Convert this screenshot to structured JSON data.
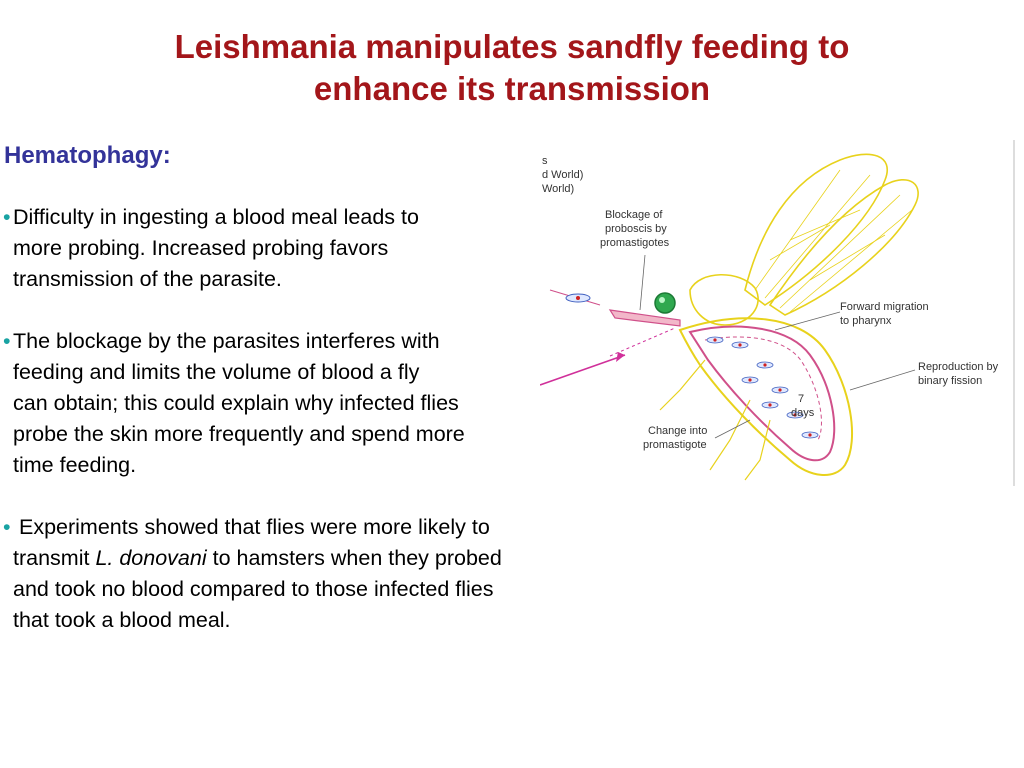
{
  "slide": {
    "title_line1": "Leishmania manipulates sandfly feeding to",
    "title_line2": "enhance its transmission",
    "section_heading": "Hematophagy:",
    "bullets": [
      {
        "lines": [
          "Difficulty in ingesting a blood meal leads to",
          "more probing. Increased probing favors",
          "transmission of the parasite."
        ]
      },
      {
        "lines": [
          "The blockage by the parasites interferes with",
          "feeding and limits the volume of blood a fly",
          "can obtain; this could explain why infected flies",
          "probe the skin more frequently and spend more",
          "time feeding."
        ]
      },
      {
        "line1": "Experiments showed that flies were more likely to",
        "line2_pre": "transmit ",
        "line2_italic": "L. donovani",
        "line2_post": " to hamsters when they probed",
        "line3": "and took no blood compared to those infected flies",
        "line4": "that took a blood meal."
      }
    ]
  },
  "figure": {
    "cropped_label_1": "s",
    "cropped_label_2": "d World)",
    "cropped_label_3": "World)",
    "label_blockage_1": "Blockage of",
    "label_blockage_2": "proboscis by",
    "label_blockage_3": "promastigotes",
    "label_forward_1": "Forward migration",
    "label_forward_2": "to pharynx",
    "label_reproduction_1": "Reproduction by",
    "label_reproduction_2": "binary fission",
    "label_days_1": "7",
    "label_days_2": "days",
    "label_change_1": "Change into",
    "label_change_2": "promastigote"
  },
  "colors": {
    "title": "#a3161a",
    "heading": "#333399",
    "bullet_dot": "#19a3a3",
    "wing_outline": "#e8d21c",
    "gut_outline": "#d0508a",
    "arrow": "#d0309a",
    "eye": "#2fa84f"
  }
}
